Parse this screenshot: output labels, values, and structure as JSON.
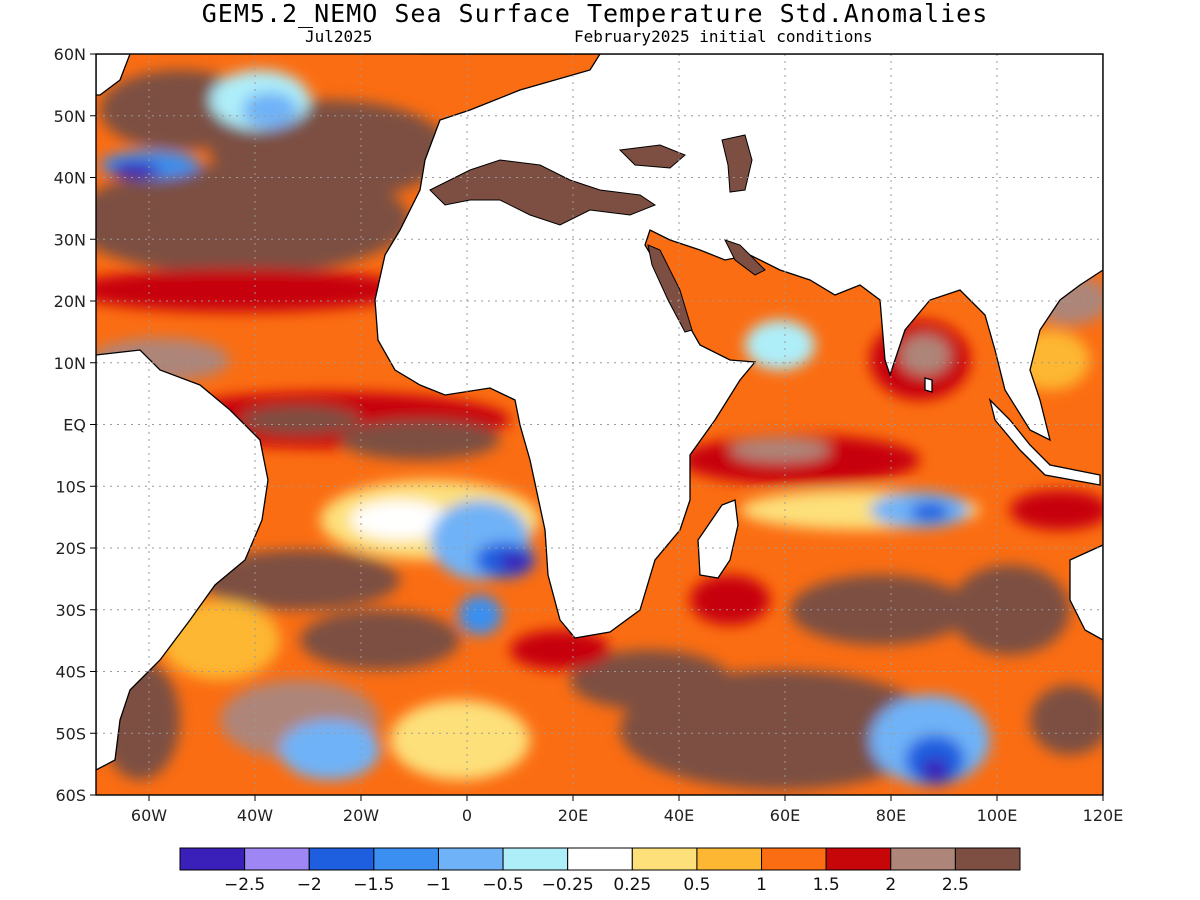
{
  "title": "GEM5.2_NEMO Sea Surface Temperature Std.Anomalies",
  "subtitle_left": "Jul2025",
  "subtitle_right": "February2025 initial conditions",
  "map": {
    "region": {
      "lon_min": -70,
      "lon_max": 120,
      "lat_min": -60,
      "lat_max": 60
    },
    "lat_ticks": [
      {
        "value": 60,
        "label": "60N"
      },
      {
        "value": 50,
        "label": "50N"
      },
      {
        "value": 40,
        "label": "40N"
      },
      {
        "value": 30,
        "label": "30N"
      },
      {
        "value": 20,
        "label": "20N"
      },
      {
        "value": 10,
        "label": "10N"
      },
      {
        "value": 0,
        "label": "EQ"
      },
      {
        "value": -10,
        "label": "10S"
      },
      {
        "value": -20,
        "label": "20S"
      },
      {
        "value": -30,
        "label": "30S"
      },
      {
        "value": -40,
        "label": "40S"
      },
      {
        "value": -50,
        "label": "50S"
      },
      {
        "value": -60,
        "label": "60S"
      }
    ],
    "lon_ticks": [
      {
        "value": -60,
        "label": "60W"
      },
      {
        "value": -40,
        "label": "40W"
      },
      {
        "value": -20,
        "label": "20W"
      },
      {
        "value": 0,
        "label": "0"
      },
      {
        "value": 20,
        "label": "20E"
      },
      {
        "value": 40,
        "label": "40E"
      },
      {
        "value": 60,
        "label": "60E"
      },
      {
        "value": 80,
        "label": "80E"
      },
      {
        "value": 100,
        "label": "100E"
      },
      {
        "value": 120,
        "label": "120E"
      }
    ],
    "land_color": "#ffffff",
    "grid": true
  },
  "colorbar": {
    "colors": [
      "#3a1fb8",
      "#9e87f5",
      "#1e5fe0",
      "#3a8ff0",
      "#6fb2f7",
      "#aeeef9",
      "#ffffff",
      "#fde07a",
      "#fdb732",
      "#fb6d12",
      "#c7060a",
      "#ae8579",
      "#7c4f42"
    ],
    "labels": [
      "−2.5",
      "−2",
      "−1.5",
      "−1",
      "−0.5",
      "−0.25",
      "0.25",
      "0.5",
      "1",
      "1.5",
      "2",
      "2.5"
    ]
  }
}
